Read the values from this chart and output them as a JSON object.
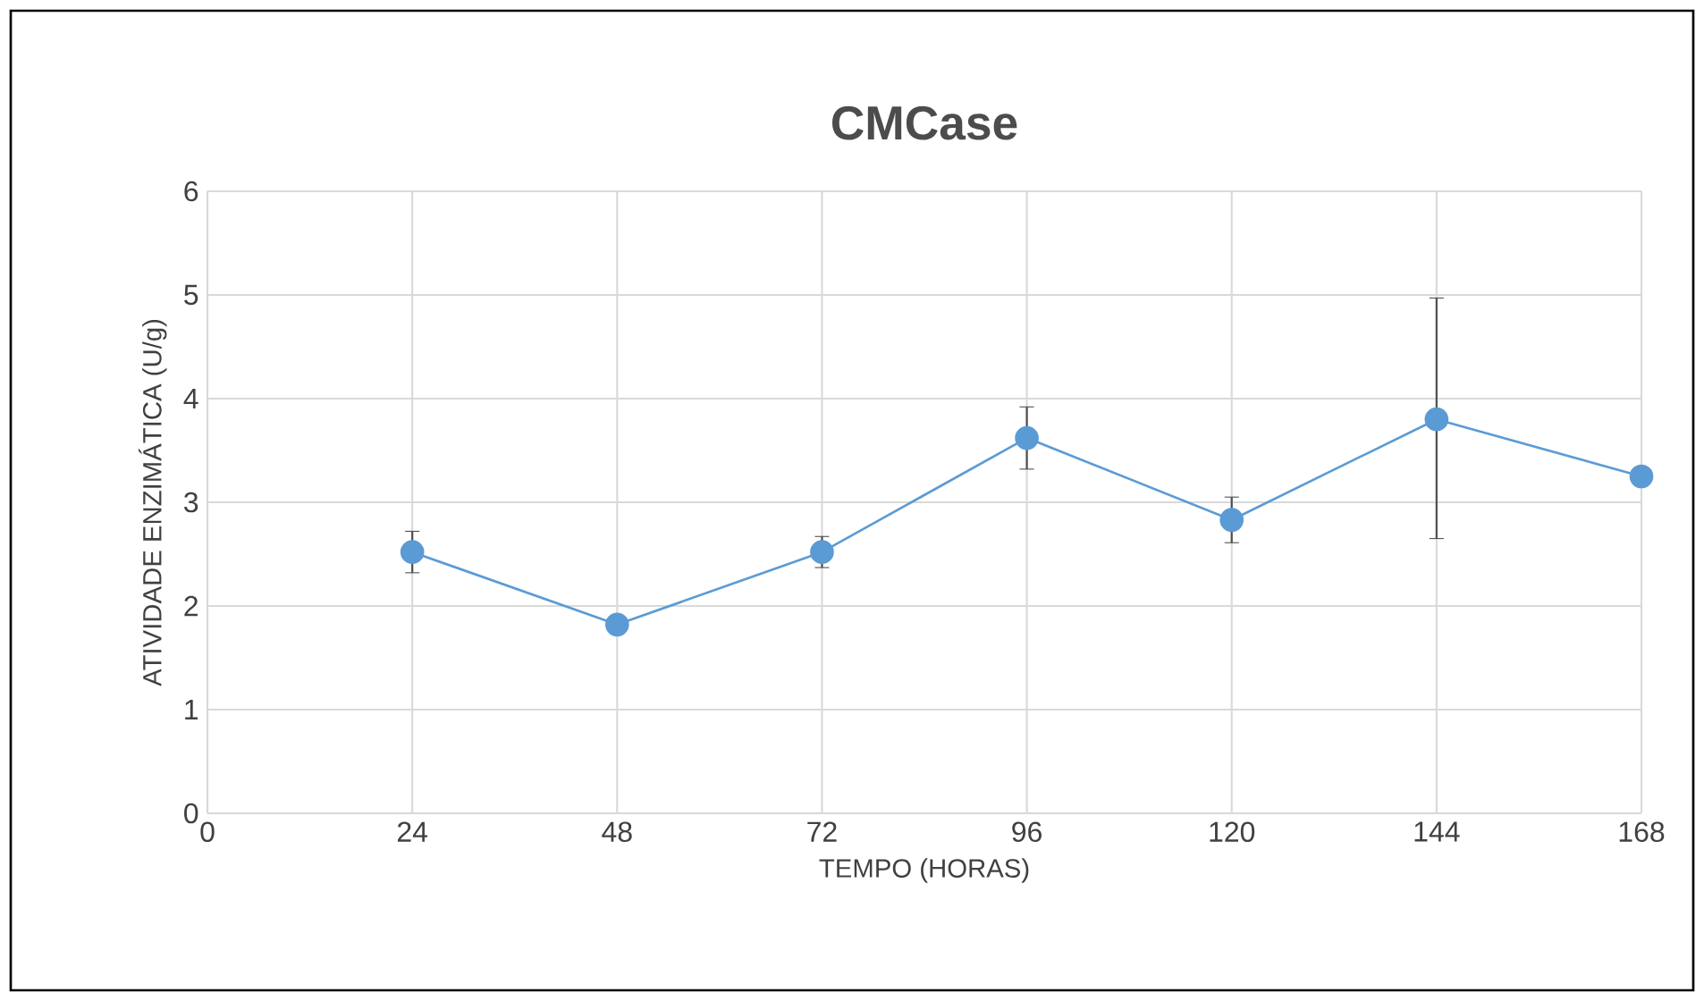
{
  "chart_data": {
    "type": "line",
    "title": "CMCase",
    "xlabel": "TEMPO (HORAS)",
    "ylabel": "ATIVIDADE ENZIMÁTICA (U/g)",
    "x": [
      24,
      48,
      72,
      96,
      120,
      144,
      168
    ],
    "series": [
      {
        "color": "#5b9bd5",
        "values": [
          2.52,
          1.82,
          2.52,
          3.62,
          2.83,
          3.8,
          3.25
        ],
        "errors": [
          0.2,
          null,
          0.15,
          0.3,
          0.22,
          [
            2.65,
            4.97
          ],
          null
        ]
      }
    ],
    "xlim": [
      0,
      168
    ],
    "xticks": [
      0,
      24,
      48,
      72,
      96,
      120,
      144,
      168
    ],
    "ylim": [
      0,
      6
    ],
    "yticks": [
      0,
      1,
      2,
      3,
      4,
      5,
      6
    ],
    "grid": true,
    "marker": "circle",
    "line_style": "solid"
  }
}
